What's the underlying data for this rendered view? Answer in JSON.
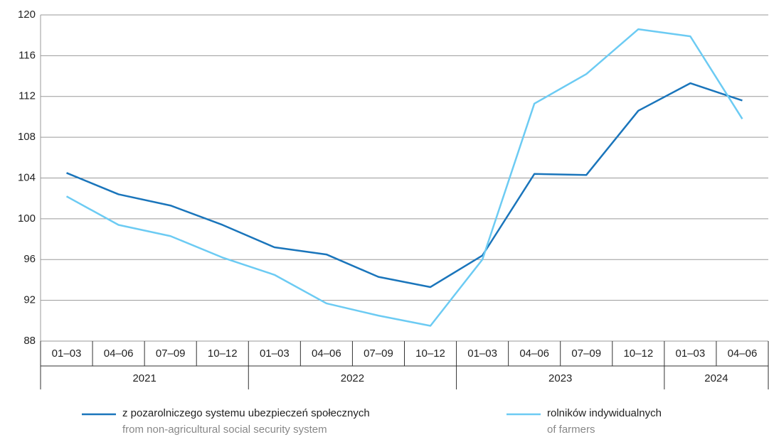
{
  "chart_data": {
    "type": "line",
    "groups": [
      {
        "label": "2021",
        "categories": [
          "01–03",
          "04–06",
          "07–09",
          "10–12"
        ]
      },
      {
        "label": "2022",
        "categories": [
          "01–03",
          "04–06",
          "07–09",
          "10–12"
        ]
      },
      {
        "label": "2023",
        "categories": [
          "01–03",
          "04–06",
          "07–09",
          "10–12"
        ]
      },
      {
        "label": "2024",
        "categories": [
          "01–03",
          "04–06"
        ]
      }
    ],
    "series": [
      {
        "name": "z pozarolniczego systemu ubezpieczeń społecznych",
        "name_en": "from non-agricultural social security system",
        "color": "#1a75bb",
        "values": [
          104.5,
          102.4,
          101.3,
          99.4,
          97.2,
          96.5,
          94.3,
          93.3,
          96.4,
          104.4,
          104.3,
          110.6,
          113.3,
          111.6
        ]
      },
      {
        "name": "rolników indywidualnych",
        "name_en": "of farmers",
        "color": "#6ccbf3",
        "values": [
          102.2,
          99.4,
          98.3,
          96.2,
          94.5,
          91.7,
          90.5,
          89.5,
          96.0,
          111.3,
          114.2,
          118.6,
          117.9,
          109.8
        ]
      }
    ],
    "ylim": [
      88,
      120
    ],
    "yticks": [
      88,
      92,
      96,
      100,
      104,
      108,
      112,
      116,
      120
    ],
    "grid": true
  }
}
